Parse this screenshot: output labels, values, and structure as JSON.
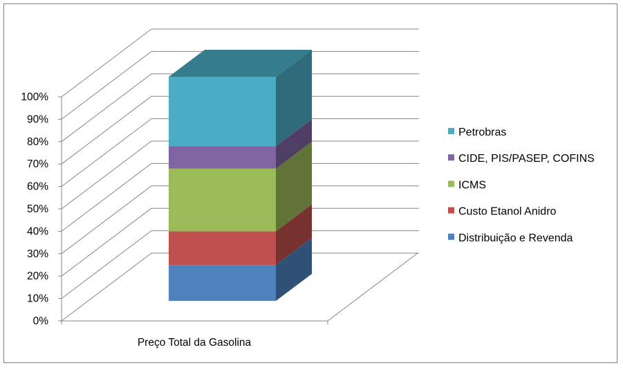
{
  "chart_data": {
    "type": "bar",
    "stacked": true,
    "percent_stacked": true,
    "three_d": true,
    "categories": [
      "Preço Total da Gasolina"
    ],
    "series": [
      {
        "name": "Distribuição e Revenda",
        "values": [
          16
        ],
        "color": "#4f81bd"
      },
      {
        "name": "Custo Etanol Anidro",
        "values": [
          15
        ],
        "color": "#c0504d"
      },
      {
        "name": "ICMS",
        "values": [
          28
        ],
        "color": "#9bbb59"
      },
      {
        "name": "CIDE, PIS/PASEP, COFINS",
        "values": [
          10
        ],
        "color": "#8064a2"
      },
      {
        "name": "Petrobras",
        "values": [
          31
        ],
        "color": "#4bacc6"
      }
    ],
    "ylim": [
      0,
      100
    ],
    "yticks": [
      "0%",
      "10%",
      "20%",
      "30%",
      "40%",
      "50%",
      "60%",
      "70%",
      "80%",
      "90%",
      "100%"
    ],
    "grid": true,
    "legend_position": "right",
    "legend_order": [
      "Petrobras",
      "CIDE, PIS/PASEP, COFINS",
      "ICMS",
      "Custo Etanol Anidro",
      "Distribuição e Revenda"
    ]
  }
}
